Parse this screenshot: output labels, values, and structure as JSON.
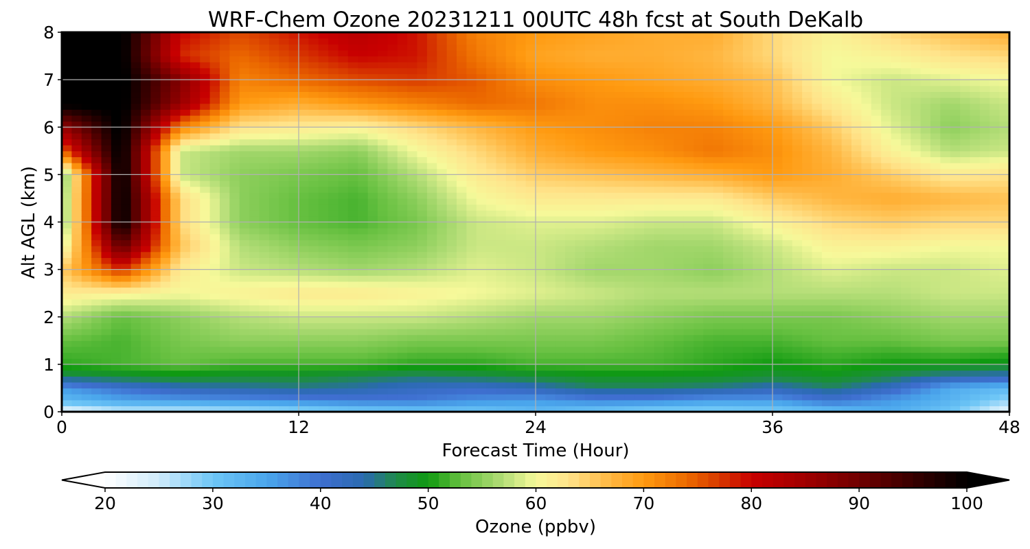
{
  "chart_data": {
    "type": "heatmap",
    "title": "WRF-Chem Ozone  20231211 00UTC 48h fcst at South DeKalb",
    "xlabel": "Forecast Time (Hour)",
    "ylabel": "Alt AGL (km)",
    "xlim": [
      0,
      48
    ],
    "ylim": [
      0,
      8
    ],
    "x_ticks": [
      0,
      12,
      24,
      36,
      48
    ],
    "y_ticks": [
      0,
      1,
      2,
      3,
      4,
      5,
      6,
      7,
      8
    ],
    "grid": true,
    "x": [
      0,
      3,
      6,
      9,
      12,
      15,
      18,
      21,
      24,
      27,
      30,
      33,
      36,
      39,
      42,
      45,
      48
    ],
    "y": [
      0,
      0.25,
      0.5,
      0.75,
      1,
      1.5,
      2,
      2.5,
      3,
      3.5,
      4,
      4.5,
      5,
      5.5,
      6,
      6.5,
      7,
      7.5,
      8
    ],
    "z": [
      [
        22,
        25,
        25,
        26,
        27,
        29,
        30,
        30,
        32,
        30,
        28,
        28,
        29,
        31,
        34,
        30,
        22
      ],
      [
        32,
        35,
        36,
        37,
        38,
        39,
        39,
        37,
        36,
        38,
        38,
        36,
        36,
        40,
        36,
        33,
        28
      ],
      [
        36,
        40,
        43,
        44,
        45,
        44,
        42,
        41,
        43,
        46,
        46,
        45,
        43,
        46,
        42,
        34,
        32
      ],
      [
        47,
        48,
        49,
        48,
        48,
        47,
        46,
        47,
        48,
        49,
        49,
        49,
        48,
        49,
        47,
        44,
        43
      ],
      [
        51,
        52,
        53,
        52,
        52,
        52,
        51,
        51,
        52,
        52,
        52,
        51,
        50,
        51,
        50,
        50,
        49
      ],
      [
        53,
        52,
        54,
        55,
        55,
        55,
        54,
        54,
        54,
        54,
        53,
        52,
        52,
        53,
        53,
        54,
        54
      ],
      [
        57,
        53,
        55,
        57,
        58,
        58,
        58,
        57,
        56,
        56,
        55,
        54,
        54,
        54,
        55,
        56,
        56
      ],
      [
        62,
        61,
        60,
        61,
        62,
        62,
        61,
        60,
        59,
        58,
        57,
        57,
        57,
        57,
        57,
        58,
        58
      ],
      [
        65,
        78,
        62,
        58,
        57,
        56,
        57,
        59,
        58,
        56,
        56,
        55,
        57,
        59,
        58,
        58,
        59
      ],
      [
        58,
        92,
        66,
        57,
        55,
        54,
        55,
        58,
        58,
        57,
        56,
        56,
        58,
        61,
        61,
        60,
        60
      ],
      [
        54,
        101,
        64,
        55,
        53,
        52,
        54,
        58,
        59,
        59,
        58,
        58,
        61,
        64,
        65,
        64,
        64
      ],
      [
        54,
        101,
        64,
        55,
        53,
        52,
        55,
        60,
        62,
        62,
        62,
        62,
        65,
        67,
        68,
        67,
        66
      ],
      [
        53,
        101,
        58,
        55,
        54,
        53,
        57,
        62,
        65,
        66,
        67,
        68,
        70,
        68,
        65,
        62,
        63
      ],
      [
        74,
        101,
        58,
        56,
        56,
        55,
        60,
        64,
        68,
        70,
        71,
        73,
        71,
        67,
        61,
        57,
        58
      ],
      [
        86,
        101,
        72,
        63,
        62,
        61,
        64,
        67,
        70,
        71,
        72,
        72,
        70,
        65,
        59,
        55,
        57
      ],
      [
        101,
        101,
        86,
        70,
        68,
        70,
        72,
        74,
        73,
        71,
        71,
        70,
        67,
        62,
        58,
        56,
        58
      ],
      [
        101,
        101,
        88,
        72,
        74,
        76,
        77,
        75,
        71,
        70,
        69,
        68,
        66,
        60,
        58,
        59,
        60
      ],
      [
        101,
        101,
        78,
        74,
        77,
        80,
        79,
        73,
        69,
        68,
        68,
        67,
        64,
        60,
        61,
        63,
        64
      ],
      [
        101,
        101,
        80,
        76,
        79,
        82,
        79,
        72,
        70,
        69,
        68,
        68,
        64,
        61,
        64,
        66,
        68
      ]
    ],
    "colorbar": {
      "label": "Ozone  (ppbv)",
      "min": 20,
      "max": 100,
      "ticks": [
        20,
        30,
        40,
        50,
        60,
        70,
        80,
        90,
        100
      ],
      "extend": "both",
      "under_color": "#ffffff",
      "over_color": "#000000",
      "colormap": [
        [
          20,
          "#ffffff"
        ],
        [
          25,
          "#cfebfb"
        ],
        [
          30,
          "#6ec6f6"
        ],
        [
          35,
          "#4aa6ec"
        ],
        [
          40,
          "#3f6fd0"
        ],
        [
          44,
          "#2a6ab0"
        ],
        [
          47,
          "#1f8a4a"
        ],
        [
          50,
          "#0f9a10"
        ],
        [
          53,
          "#66c040"
        ],
        [
          57,
          "#b5de78"
        ],
        [
          60,
          "#f6f99a"
        ],
        [
          63,
          "#ffe38a"
        ],
        [
          67,
          "#ffb640"
        ],
        [
          70,
          "#ff9a10"
        ],
        [
          74,
          "#ec6a00"
        ],
        [
          77,
          "#d83a00"
        ],
        [
          80,
          "#c80000"
        ],
        [
          85,
          "#a00000"
        ],
        [
          90,
          "#700000"
        ],
        [
          95,
          "#380000"
        ],
        [
          100,
          "#000000"
        ]
      ]
    }
  }
}
